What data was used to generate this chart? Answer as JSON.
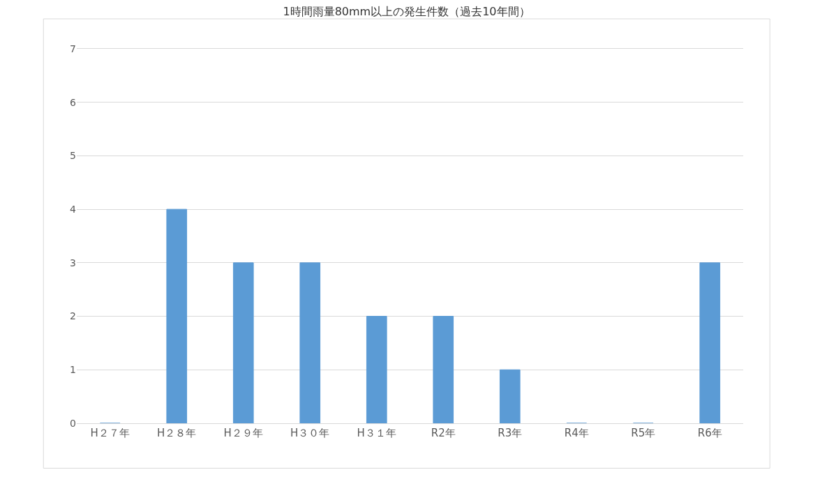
{
  "chart_data": {
    "type": "bar",
    "title": "1時間雨量80mm以上の発生件数（過去10年間）",
    "categories": [
      "H２７年",
      "H２８年",
      "H２９年",
      "H３０年",
      "H３１年",
      "R2年",
      "R3年",
      "R4年",
      "R5年",
      "R6年"
    ],
    "values": [
      0,
      4,
      3,
      3,
      2,
      2,
      1,
      0,
      0,
      3
    ],
    "color": "#5b9bd5",
    "ylim": [
      0,
      7
    ],
    "yticks": [
      0,
      1,
      2,
      3,
      4,
      5,
      6,
      7
    ],
    "grid": "y"
  }
}
